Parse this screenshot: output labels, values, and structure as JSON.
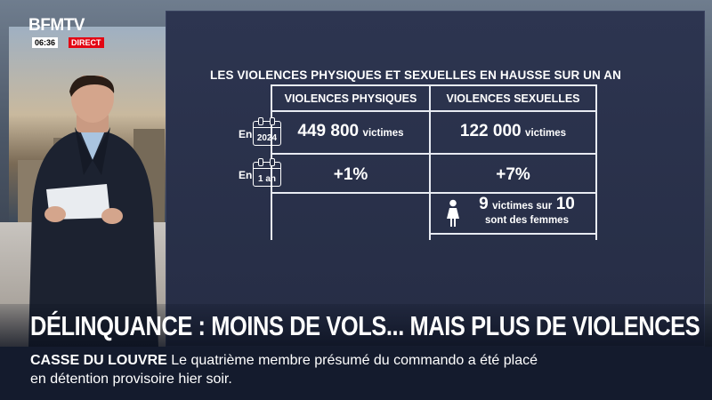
{
  "channel": {
    "name": "BFMTV",
    "time": "06:36",
    "live": "DIRECT"
  },
  "screen": {
    "title": "LES VIOLENCES PHYSIQUES ET SEXUELLES EN HAUSSE SUR UN AN",
    "table": {
      "headers": [
        "VIOLENCES PHYSIQUES",
        "VIOLENCES SEXUELLES"
      ],
      "rows": [
        {
          "label": "En",
          "period": "2024",
          "physiques": "449 800",
          "physiques_unit": "victimes",
          "sexuelles": "122 000",
          "sexuelles_unit": "victimes"
        },
        {
          "label": "En",
          "period": "1 an",
          "physiques": "+1%",
          "sexuelles": "+7%"
        }
      ],
      "note": {
        "number_a": "9",
        "text_a": "victimes sur",
        "number_b": "10",
        "text_b": "sont des femmes"
      }
    }
  },
  "headline": "DÉLINQUANCE : MOINS DE VOLS... MAIS PLUS DE VIOLENCES",
  "ticker": {
    "tag": "CASSE DU LOUVRE",
    "line1": "Le quatrième membre présumé du commando a été placé",
    "line2": "en détention provisoire hier soir."
  },
  "colors": {
    "screen_bg": "#2d3550",
    "ticker_bg": "#141b2d",
    "live_red": "#e30613"
  },
  "icons": [
    "calendar-icon",
    "woman-icon"
  ]
}
